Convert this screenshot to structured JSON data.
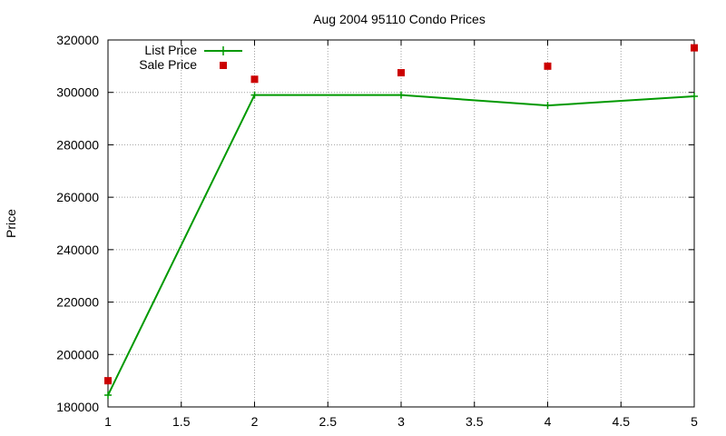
{
  "chart_data": {
    "type": "line",
    "title": "Aug 2004 95110 Condo Prices",
    "xlabel": "",
    "ylabel": "Price",
    "xlim": [
      1,
      5
    ],
    "ylim": [
      180000,
      320000
    ],
    "xticks": [
      1,
      1.5,
      2,
      2.5,
      3,
      3.5,
      4,
      4.5,
      5
    ],
    "yticks": [
      180000,
      200000,
      220000,
      240000,
      260000,
      280000,
      300000,
      320000
    ],
    "grid": true,
    "legend": "top-left",
    "series": [
      {
        "name": "List Price",
        "style": "linespoints",
        "marker": "plus",
        "color": "#009900",
        "x": [
          1,
          2,
          3,
          4,
          5
        ],
        "y": [
          184500,
          299000,
          299000,
          295000,
          298500
        ]
      },
      {
        "name": "Sale Price",
        "style": "points",
        "marker": "square",
        "color": "#cc0000",
        "x": [
          1,
          2,
          3,
          4,
          5
        ],
        "y": [
          190000,
          305000,
          307500,
          310000,
          317000
        ]
      }
    ]
  }
}
